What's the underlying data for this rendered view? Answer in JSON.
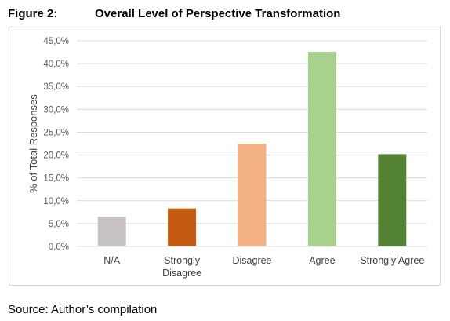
{
  "figure_label": "Figure 2:",
  "figure_title": "Overall Level of Perspective Transformation",
  "source": "Source: Author’s compilation",
  "chart_data": {
    "type": "bar",
    "categories": [
      [
        "N/A"
      ],
      [
        "Strongly",
        "Disagree"
      ],
      [
        "Disagree"
      ],
      [
        "Agree"
      ],
      [
        "Strongly Agree"
      ]
    ],
    "values": [
      6.5,
      8.3,
      22.5,
      42.6,
      20.2
    ],
    "colors": [
      "#c8c4c4",
      "#c55a11",
      "#f4b183",
      "#a9d18e",
      "#548235"
    ],
    "ylabel": "% of Total Responses",
    "ylim": [
      0,
      45
    ],
    "yticks": [
      0,
      5,
      10,
      15,
      20,
      25,
      30,
      35,
      40,
      45
    ],
    "ytick_labels": [
      "0,0%",
      "5,0%",
      "10,0%",
      "15,0%",
      "20,0%",
      "25,0%",
      "30,0%",
      "35,0%",
      "40,0%",
      "45,0%"
    ],
    "grid": true
  }
}
